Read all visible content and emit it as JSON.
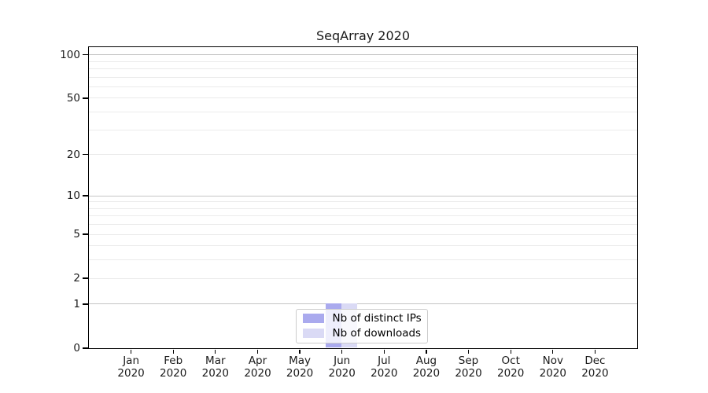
{
  "title": "SeqArray 2020",
  "chart_data": {
    "type": "bar",
    "title": "SeqArray 2020",
    "categories": [
      "Jan 2020",
      "Feb 2020",
      "Mar 2020",
      "Apr 2020",
      "May 2020",
      "Jun 2020",
      "Jul 2020",
      "Aug 2020",
      "Sep 2020",
      "Oct 2020",
      "Nov 2020",
      "Dec 2020"
    ],
    "series": [
      {
        "name": "Nb of distinct IPs",
        "color": "#aaaaee",
        "values": [
          0,
          0,
          0,
          0,
          0,
          1,
          0,
          0,
          0,
          0,
          0,
          0
        ]
      },
      {
        "name": "Nb of downloads",
        "color": "#dadaf5",
        "values": [
          0,
          0,
          0,
          0,
          0,
          1,
          0,
          0,
          0,
          0,
          0,
          0
        ]
      }
    ],
    "xlabel": "",
    "ylabel": "",
    "y_scale": "log1p",
    "ylim": [
      0,
      100
    ],
    "y_ticks": [
      0,
      1,
      2,
      5,
      10,
      20,
      50,
      100
    ],
    "y_major_gridlines": [
      1,
      10,
      100
    ],
    "y_minor_gridlines": [
      2,
      3,
      4,
      5,
      6,
      7,
      8,
      9,
      20,
      30,
      40,
      50,
      60,
      70,
      80,
      90
    ],
    "grid": true,
    "legend_position": "bottom-center",
    "colors": {
      "major_grid": "#c4c4c4",
      "minor_grid": "#ebebeb",
      "spine": "#000000",
      "text": "#1a1a1a",
      "legend_border": "#cccccc",
      "background": "#ffffff"
    }
  }
}
